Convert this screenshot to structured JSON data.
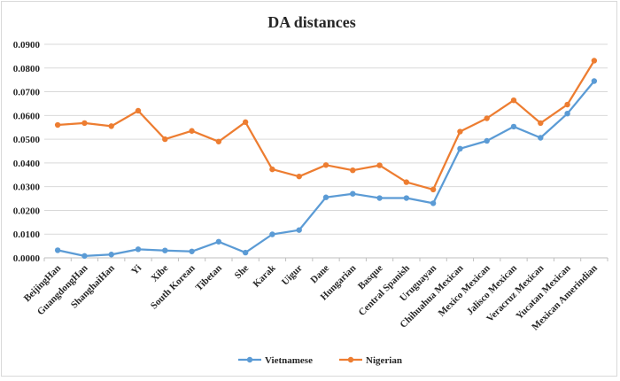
{
  "chart_data": {
    "type": "line",
    "title": "DA distances",
    "xlabel": "",
    "ylabel": "",
    "ylim": [
      0,
      0.09
    ],
    "ytick_labels": [
      "0.0000",
      "0.0100",
      "0.0200",
      "0.0300",
      "0.0400",
      "0.0500",
      "0.0600",
      "0.0700",
      "0.0800",
      "0.0900"
    ],
    "categories": [
      "BeijingHan",
      "GuangdongHan",
      "ShanghaiHan",
      "Yi",
      "Xibe",
      "South Korean",
      "Tibetan",
      "She",
      "Karak",
      "Uigur",
      "Dane",
      "Hungarian",
      "Basque",
      "Central Spanish",
      "Uruguayan",
      "Chihuahua Mexican",
      "Mexico Mexican",
      "Jalisco Mexican",
      "Veracruz Mexican",
      "Yucatan Mexican",
      "Mexican Amerindian"
    ],
    "series": [
      {
        "name": "Vietnamese",
        "color": "#5b9bd5",
        "values": [
          0.0032,
          0.0008,
          0.0014,
          0.0036,
          0.0031,
          0.0027,
          0.0068,
          0.0022,
          0.0099,
          0.0117,
          0.0255,
          0.027,
          0.0252,
          0.0252,
          0.023,
          0.046,
          0.0493,
          0.0553,
          0.0506,
          0.0608,
          0.0745
        ]
      },
      {
        "name": "Nigerian",
        "color": "#ed7d31",
        "values": [
          0.056,
          0.0568,
          0.0555,
          0.062,
          0.05,
          0.0535,
          0.049,
          0.0572,
          0.0373,
          0.0343,
          0.0391,
          0.0369,
          0.039,
          0.0319,
          0.0288,
          0.0532,
          0.0588,
          0.0664,
          0.0568,
          0.0646,
          0.0831
        ]
      }
    ],
    "grid": true,
    "legend": "bottom"
  }
}
